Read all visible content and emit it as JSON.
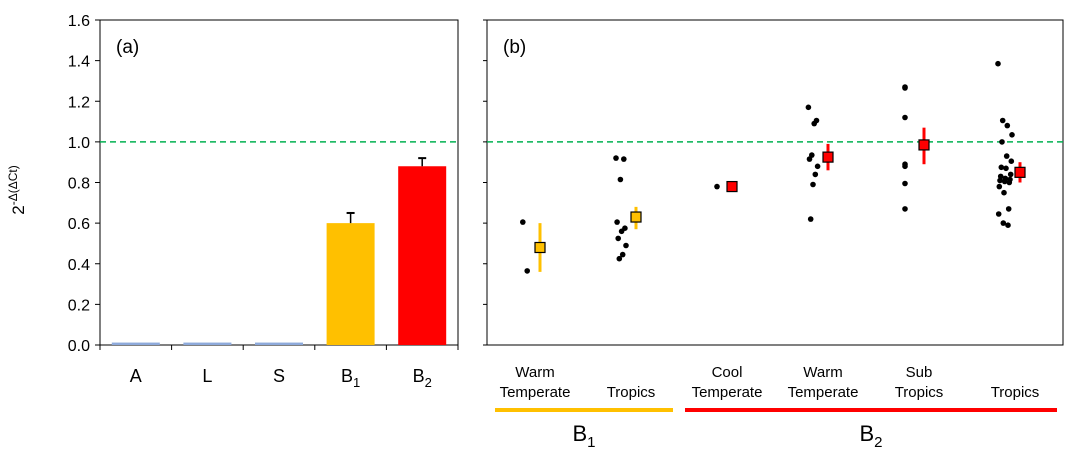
{
  "chart_data": [
    {
      "type": "bar",
      "panel_label": "(a)",
      "ylabel_base": "2",
      "ylabel_exp": "-Δ(ΔCt)",
      "ylim": [
        0,
        1.6
      ],
      "yticks": [
        "0.0",
        "0.2",
        "0.4",
        "0.6",
        "0.8",
        "1.0",
        "1.2",
        "1.4",
        "1.6"
      ],
      "reference_line": 1.0,
      "categories": [
        {
          "main": "A",
          "sub": ""
        },
        {
          "main": "L",
          "sub": ""
        },
        {
          "main": "S",
          "sub": ""
        },
        {
          "main": "B",
          "sub": "1"
        },
        {
          "main": "B",
          "sub": "2"
        }
      ],
      "values": [
        0.012,
        0.012,
        0.012,
        0.6,
        0.88
      ],
      "errors": [
        0.0,
        0.0,
        0.0,
        0.05,
        0.04
      ],
      "colors": [
        "#8eaadb",
        "#8eaadb",
        "#8eaadb",
        "#ffc000",
        "#ff0000"
      ]
    },
    {
      "type": "scatter",
      "panel_label": "(b)",
      "ylim": [
        0,
        1.6
      ],
      "reference_line": 1.0,
      "groups": [
        {
          "line1": "Warm",
          "line2": "Temperate",
          "color": "#ffc000",
          "mean": 0.48,
          "err": [
            0.36,
            0.6
          ],
          "points": [
            0.605,
            0.365
          ]
        },
        {
          "line1": "",
          "line2": "Tropics",
          "color": "#ffc000",
          "mean": 0.63,
          "err": [
            0.57,
            0.68
          ],
          "points": [
            0.92,
            0.915,
            0.815,
            0.605,
            0.575,
            0.56,
            0.525,
            0.49,
            0.445,
            0.425
          ]
        },
        {
          "line1": "Cool",
          "line2": "Temperate",
          "color": "#ff0000",
          "mean": 0.78,
          "err": [
            0.78,
            0.78
          ],
          "points": [
            0.78
          ]
        },
        {
          "line1": "Warm",
          "line2": "Temperate",
          "color": "#ff0000",
          "mean": 0.925,
          "err": [
            0.86,
            0.99
          ],
          "points": [
            1.17,
            1.105,
            1.09,
            0.935,
            0.915,
            0.88,
            0.84,
            0.79,
            0.62
          ]
        },
        {
          "line1": "Sub",
          "line2": "Tropics",
          "color": "#ff0000",
          "mean": 0.985,
          "err": [
            0.89,
            1.07
          ],
          "points": [
            1.27,
            1.265,
            1.12,
            0.89,
            0.88,
            0.795,
            0.67
          ]
        },
        {
          "line1": "",
          "line2": "Tropics",
          "color": "#ff0000",
          "mean": 0.85,
          "err": [
            0.8,
            0.9
          ],
          "points": [
            1.385,
            1.105,
            1.08,
            1.035,
            1.0,
            0.93,
            0.905,
            0.875,
            0.87,
            0.84,
            0.83,
            0.82,
            0.815,
            0.81,
            0.805,
            0.8,
            0.78,
            0.75,
            0.67,
            0.645,
            0.6,
            0.59
          ]
        }
      ],
      "brackets": [
        {
          "main": "B",
          "sub": "1",
          "color": "#ffc000"
        },
        {
          "main": "B",
          "sub": "2",
          "color": "#ff0000"
        }
      ]
    }
  ]
}
